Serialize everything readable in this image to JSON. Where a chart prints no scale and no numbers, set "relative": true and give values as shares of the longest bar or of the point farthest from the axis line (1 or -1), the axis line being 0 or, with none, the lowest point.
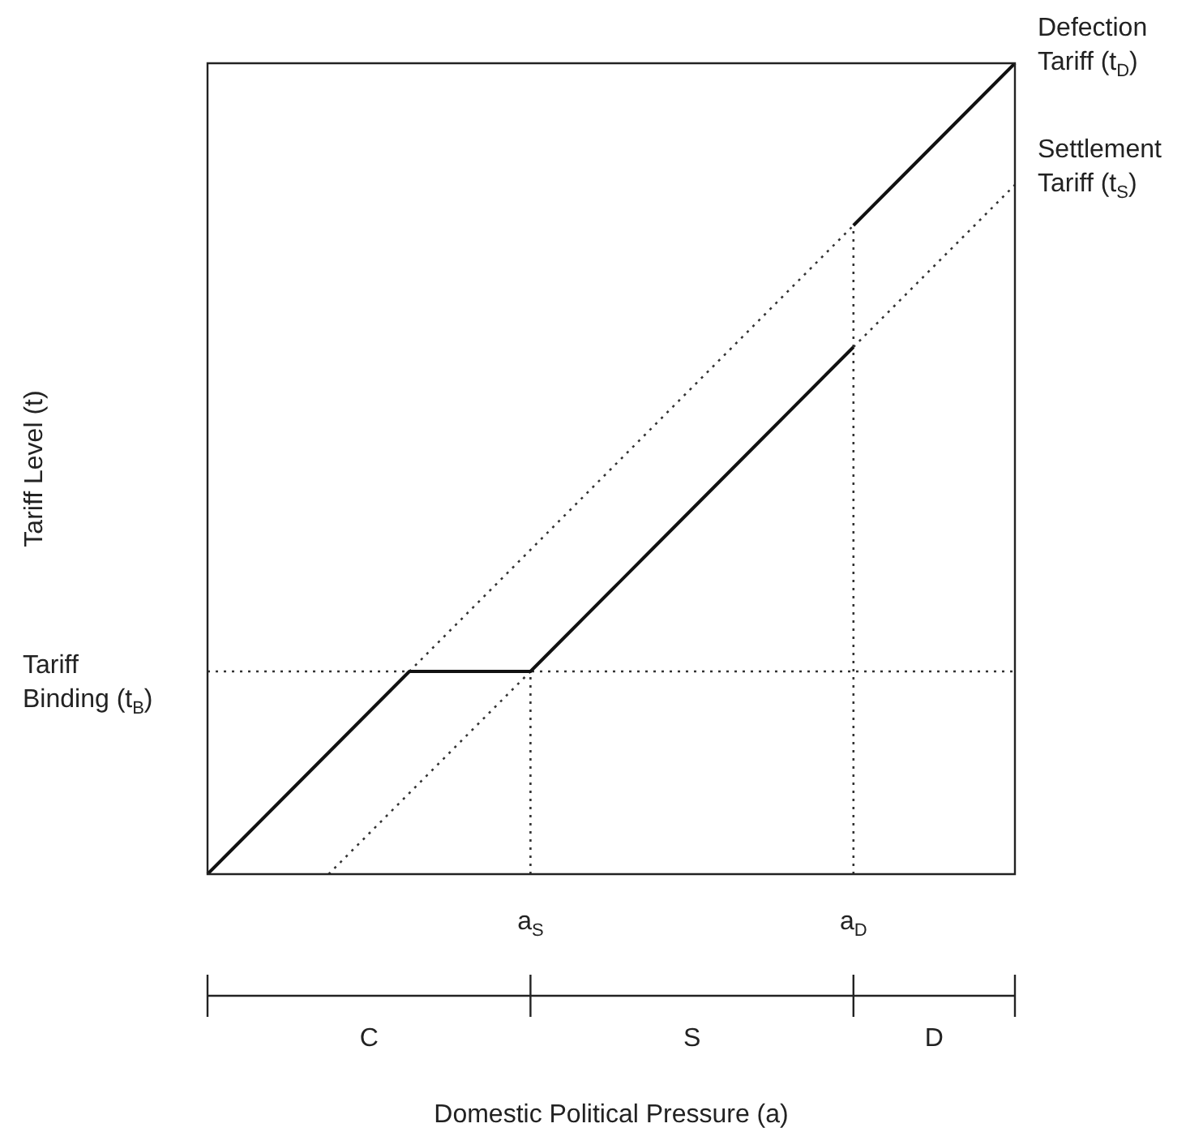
{
  "chart_data": {
    "type": "line",
    "relative": true,
    "categories": [
      null,
      null,
      null,
      null,
      null,
      null,
      null,
      null,
      "a$_{S}$",
      null,
      null,
      null,
      null,
      null,
      null,
      null,
      "a$_{D}$",
      null,
      null,
      null,
      null
    ],
    "legend": false,
    "grid": false,
    "series": [
      {
        "color": "#111111",
        "line_style": "solid",
        "values": [
          0,
          0.05,
          0.1,
          0.15,
          0.2,
          0.25,
          0.25,
          0.25,
          0.25,
          0.3,
          0.35,
          0.4,
          0.45,
          0.5,
          0.55,
          0.6,
          0.65,
          null,
          null,
          null,
          null
        ]
      },
      {
        "color": "#111111",
        "line_style": "solid",
        "values": [
          null,
          null,
          null,
          null,
          null,
          null,
          null,
          null,
          null,
          null,
          null,
          null,
          null,
          null,
          null,
          null,
          0.8,
          0.85,
          0.9,
          0.95,
          1
        ]
      },
      {
        "color": "#333333",
        "line_style": "dotted",
        "values": [
          null,
          null,
          null,
          null,
          null,
          0.25,
          0.3,
          0.35,
          0.4,
          0.45,
          0.5,
          0.55,
          0.6,
          0.65,
          0.7,
          0.75,
          0.8,
          null,
          null,
          null,
          null
        ]
      },
      {
        "color": "#333333",
        "line_style": "dotted",
        "values": [
          null,
          null,
          null,
          0,
          0.05,
          0.1,
          0.15,
          0.2,
          0.25,
          null,
          null,
          null,
          null,
          null,
          null,
          null,
          0.65,
          0.7,
          0.75,
          0.8,
          0.85
        ]
      }
    ],
    "ref_lines": [
      {
        "axis": "y",
        "value": 0.25,
        "label": "Tariff\nBinding (t$_{B}$)",
        "color": "#333333",
        "line_style": "dotted"
      },
      {
        "axis": "x",
        "value": "a$_{S}$",
        "color": "#333333",
        "line_style": "dotted"
      },
      {
        "axis": "x",
        "value": "a$_{D}$",
        "color": "#333333",
        "line_style": "dotted"
      }
    ],
    "annotations": [
      "Defection\nTariff (t$_{D}$)",
      "Settlement\nTariff (t$_{S}$)",
      "C",
      "S",
      "D",
      "Domestic Political Pressure (a)",
      "Tariff Level (t)"
    ]
  }
}
